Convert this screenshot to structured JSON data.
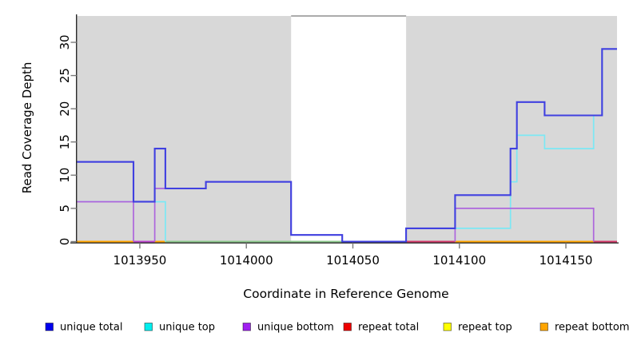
{
  "chart_data": {
    "type": "line",
    "subtype": "step-coverage-plot",
    "title": "",
    "xlabel": "Coordinate in Reference Genome",
    "ylabel": "Read Coverage Depth",
    "xlim": [
      1013920,
      1014174
    ],
    "ylim": [
      0,
      34
    ],
    "x_ticks": [
      1013950,
      1014000,
      1014050,
      1014100,
      1014150
    ],
    "y_ticks": [
      0,
      5,
      10,
      15,
      20,
      25,
      30
    ],
    "grid": "off",
    "legend_position": "bottom",
    "shaded_regions": [
      {
        "from": 1013920,
        "to": 1014021
      },
      {
        "from": 1014075,
        "to": 1014174
      }
    ],
    "gap_region": {
      "from": 1014021,
      "to": 1014075
    },
    "series": [
      {
        "name": "repeat total",
        "color": "#D43A6A",
        "line_width": 1.8,
        "draw_zero": false,
        "steps": [
          [
            1013920,
            0
          ]
        ],
        "end": 1014174
      },
      {
        "name": "repeat top",
        "color": "#FFFF00",
        "line_width": 1.8,
        "draw_zero": false,
        "steps": [
          [
            1013920,
            0
          ]
        ],
        "end": 1014174
      },
      {
        "name": "repeat bottom",
        "color": "#FFA500",
        "line_width": 1.8,
        "draw_zero": false,
        "steps": [
          [
            1013920,
            0
          ]
        ],
        "end": 1014174
      },
      {
        "name": "unique top",
        "color": "#7CE8F4",
        "line_width": 1.7,
        "draw_zero": false,
        "steps": [
          [
            1013920,
            6
          ],
          [
            1013962,
            0
          ],
          [
            1014075,
            2
          ],
          [
            1014124,
            9
          ],
          [
            1014127,
            16
          ],
          [
            1014140,
            14
          ],
          [
            1014163,
            19
          ],
          [
            1014167,
            29
          ]
        ],
        "end": 1014174
      },
      {
        "name": "unique bottom",
        "color": "#AD66DD",
        "line_width": 1.7,
        "draw_zero": false,
        "steps": [
          [
            1013920,
            6
          ],
          [
            1013947,
            0
          ],
          [
            1013957,
            8
          ],
          [
            1013981,
            9
          ],
          [
            1014021,
            1
          ],
          [
            1014045,
            0
          ],
          [
            1014098,
            5
          ],
          [
            1014163,
            0
          ]
        ],
        "end": 1014174
      },
      {
        "name": "unique total",
        "color": "#4040E0",
        "line_width": 2.1,
        "draw_zero": true,
        "steps": [
          [
            1013920,
            12
          ],
          [
            1013947,
            6
          ],
          [
            1013957,
            14
          ],
          [
            1013962,
            8
          ],
          [
            1013981,
            9
          ],
          [
            1014021,
            1
          ],
          [
            1014045,
            0
          ],
          [
            1014075,
            2
          ],
          [
            1014098,
            7
          ],
          [
            1014124,
            14
          ],
          [
            1014127,
            21
          ],
          [
            1014140,
            19
          ],
          [
            1014167,
            29
          ]
        ],
        "end": 1014174
      }
    ],
    "baseline_segments": [
      {
        "from": 1013920,
        "to": 1013962,
        "color": "#FFA500",
        "series": "repeat bottom"
      },
      {
        "from": 1013947,
        "to": 1013957,
        "color": "#BB44CC",
        "series": "unique bottom"
      },
      {
        "from": 1013962,
        "to": 1014075,
        "color": "#8CC88C",
        "series": "unique top + repeat top overlap"
      },
      {
        "from": 1014075,
        "to": 1014098,
        "color": "#D43A6A",
        "series": "repeat total"
      },
      {
        "from": 1014098,
        "to": 1014163,
        "color": "#FFA500",
        "series": "repeat bottom"
      },
      {
        "from": 1014163,
        "to": 1014174,
        "color": "#D43A6A",
        "series": "repeat total"
      }
    ],
    "legend": [
      {
        "label": "unique total",
        "color": "#0000EE"
      },
      {
        "label": "unique top",
        "color": "#00EEEE"
      },
      {
        "label": "unique bottom",
        "color": "#A020F0"
      },
      {
        "label": "repeat total",
        "color": "#EE0000"
      },
      {
        "label": "repeat top",
        "color": "#FFFF00"
      },
      {
        "label": "repeat bottom",
        "color": "#FFA500"
      }
    ],
    "colors": {
      "shaded_region_bg": "#D8D8D8",
      "gap_region_bg": "#FFFFFF",
      "gap_top_border": "#8F8F8F",
      "axis_line": "#2B2B2B",
      "tick_mark": "#7A7A7A",
      "tick_label": "#000000"
    }
  }
}
